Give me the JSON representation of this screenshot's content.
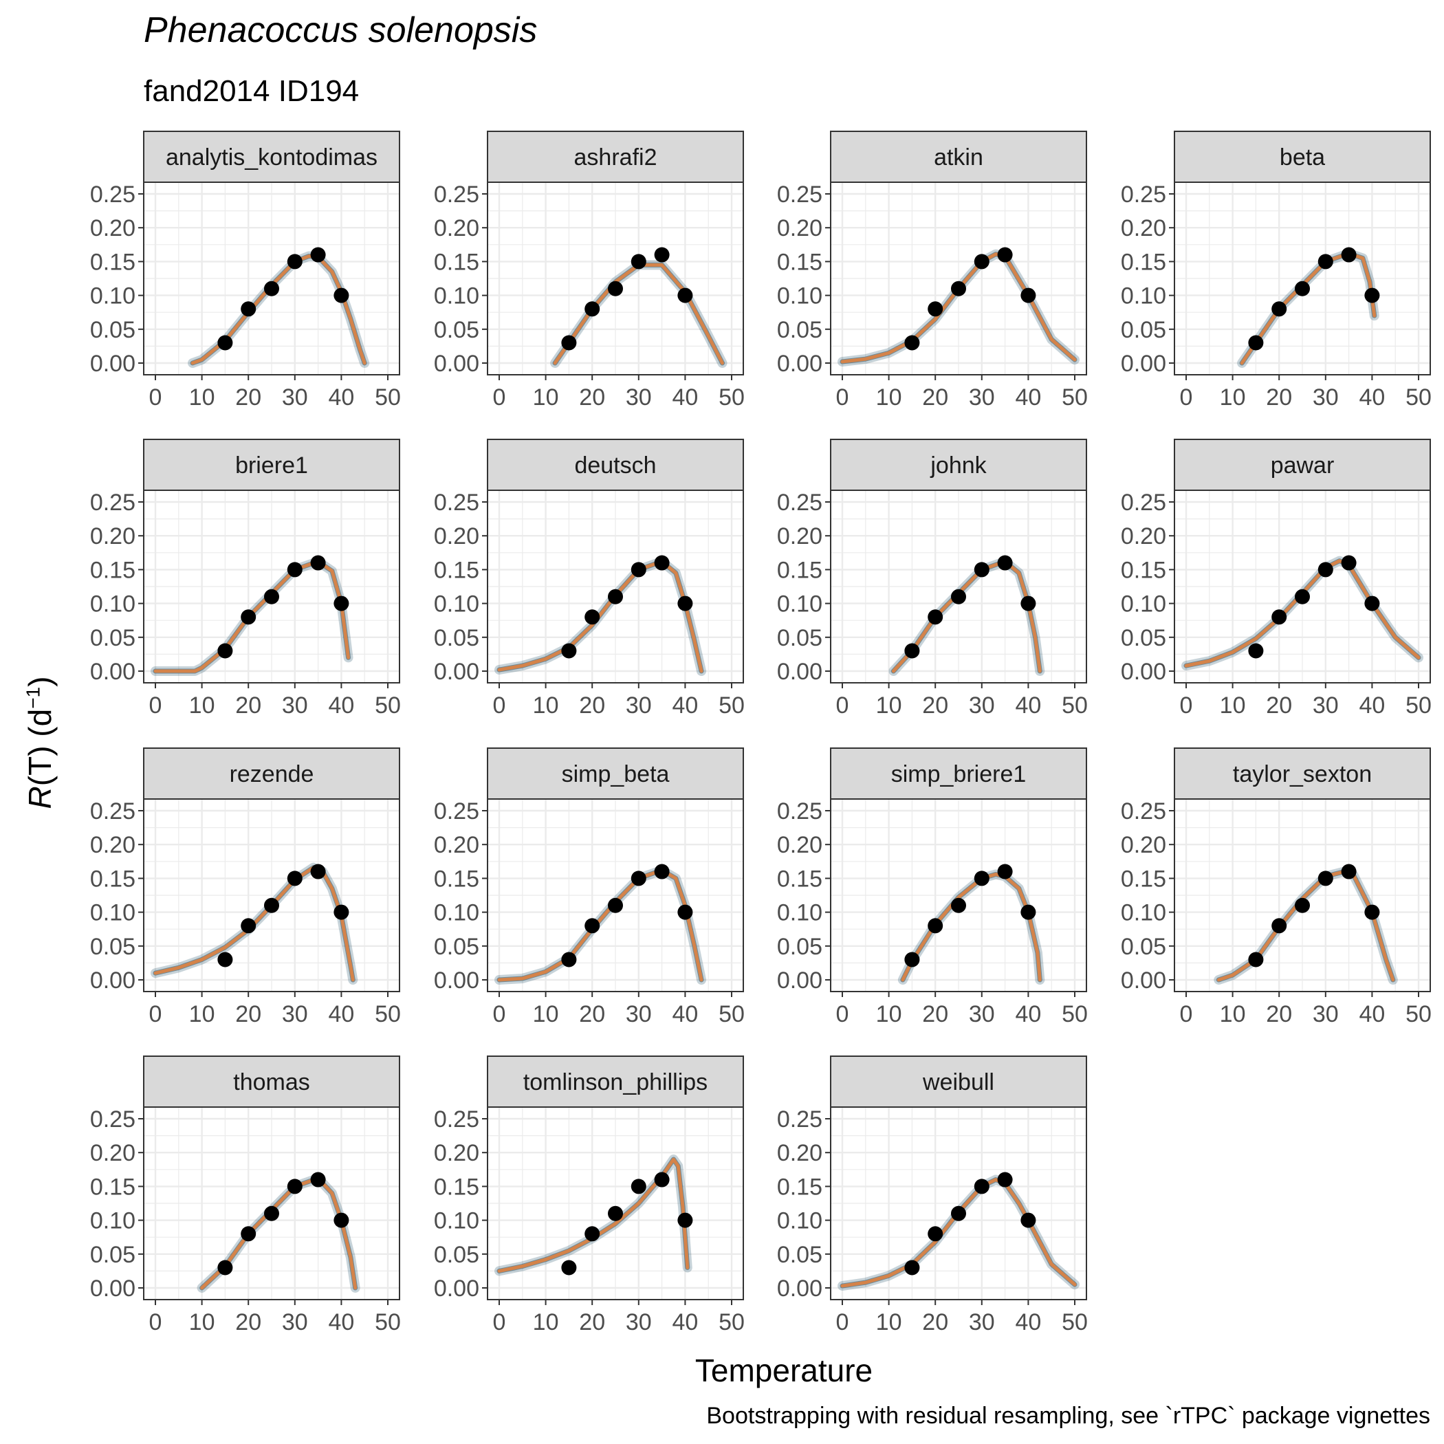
{
  "title": "Phenacoccus solenopsis",
  "subtitle": "fand2014 ID194",
  "x_axis_label": "Temperature",
  "y_axis_label": {
    "main": "R",
    "paren": "(T) (d",
    "sup": "−1",
    "close": ")"
  },
  "caption": "Bootstrapping with residual resampling, see `rTPC` package vignettes",
  "colors": {
    "fit": "#d4834a",
    "bootstrap": "#1f4e66",
    "point": "#000000",
    "strip_bg": "#d9d9d9",
    "grid": "#ebebeb",
    "panel_border": "#333333"
  },
  "chart_data": {
    "type": "line",
    "facets": [
      "analytis_kontodimas",
      "ashrafi2",
      "atkin",
      "beta",
      "briere1",
      "deutsch",
      "johnk",
      "pawar",
      "rezende",
      "simp_beta",
      "simp_briere1",
      "taylor_sexton",
      "thomas",
      "tomlinson_phillips",
      "weibull"
    ],
    "xlim": [
      0,
      50
    ],
    "ylim": [
      0,
      0.25
    ],
    "x_ticks": [
      "0",
      "10",
      "20",
      "30",
      "40",
      "50"
    ],
    "y_ticks": [
      "0.00",
      "0.05",
      "0.10",
      "0.15",
      "0.20",
      "0.25"
    ],
    "points": {
      "x": [
        15,
        20,
        25,
        30,
        35,
        40
      ],
      "y": [
        0.03,
        0.08,
        0.11,
        0.15,
        0.16,
        0.1
      ]
    },
    "fits": {
      "analytis_kontodimas": {
        "x": [
          8,
          10,
          15,
          20,
          25,
          30,
          33,
          35,
          38,
          40,
          42,
          44,
          45
        ],
        "y": [
          0,
          0.005,
          0.033,
          0.075,
          0.115,
          0.15,
          0.158,
          0.157,
          0.135,
          0.105,
          0.065,
          0.02,
          0
        ]
      },
      "ashrafi2": {
        "x": [
          12,
          15,
          20,
          25,
          30,
          35,
          40,
          45,
          48
        ],
        "y": [
          0,
          0.03,
          0.08,
          0.12,
          0.145,
          0.145,
          0.105,
          0.04,
          0
        ]
      },
      "atkin": {
        "x": [
          0,
          5,
          10,
          15,
          20,
          25,
          30,
          33,
          35,
          40,
          45,
          50
        ],
        "y": [
          0.002,
          0.006,
          0.015,
          0.033,
          0.065,
          0.11,
          0.15,
          0.161,
          0.158,
          0.1,
          0.035,
          0.005
        ]
      },
      "beta": {
        "x": [
          12,
          15,
          20,
          25,
          30,
          35,
          38,
          39.5,
          40.5
        ],
        "y": [
          0,
          0.03,
          0.08,
          0.115,
          0.15,
          0.162,
          0.155,
          0.12,
          0.07
        ]
      },
      "briere1": {
        "x": [
          0,
          8.5,
          10,
          15,
          20,
          25,
          30,
          35,
          38,
          40,
          41.5
        ],
        "y": [
          0,
          0,
          0.005,
          0.033,
          0.08,
          0.115,
          0.15,
          0.162,
          0.148,
          0.1,
          0.02
        ]
      },
      "deutsch": {
        "x": [
          0,
          5,
          10,
          15,
          20,
          25,
          30,
          35,
          38,
          40,
          42,
          43.5
        ],
        "y": [
          0.002,
          0.008,
          0.018,
          0.035,
          0.068,
          0.112,
          0.15,
          0.162,
          0.145,
          0.1,
          0.045,
          0
        ]
      },
      "johnk": {
        "x": [
          11,
          15,
          20,
          25,
          30,
          35,
          38,
          40,
          41.5,
          42.5
        ],
        "y": [
          0,
          0.03,
          0.08,
          0.115,
          0.15,
          0.162,
          0.145,
          0.1,
          0.05,
          0
        ]
      },
      "pawar": {
        "x": [
          0,
          5,
          10,
          15,
          20,
          25,
          30,
          33,
          35,
          40,
          45,
          50
        ],
        "y": [
          0.008,
          0.015,
          0.028,
          0.048,
          0.078,
          0.115,
          0.153,
          0.163,
          0.157,
          0.1,
          0.05,
          0.02
        ]
      },
      "rezende": {
        "x": [
          0,
          5,
          10,
          15,
          20,
          25,
          30,
          34,
          36,
          38,
          40,
          42,
          42.5
        ],
        "y": [
          0.01,
          0.018,
          0.03,
          0.048,
          0.074,
          0.11,
          0.148,
          0.166,
          0.16,
          0.135,
          0.095,
          0.02,
          0
        ]
      },
      "simp_beta": {
        "x": [
          0,
          5,
          10,
          15,
          20,
          25,
          30,
          35,
          38,
          40,
          42,
          43.5
        ],
        "y": [
          0,
          0.002,
          0.012,
          0.032,
          0.075,
          0.115,
          0.15,
          0.162,
          0.15,
          0.11,
          0.05,
          0
        ]
      },
      "simp_briere1": {
        "x": [
          13,
          15,
          20,
          25,
          30,
          33,
          35,
          38,
          40,
          42,
          42.5
        ],
        "y": [
          0,
          0.028,
          0.082,
          0.122,
          0.15,
          0.156,
          0.153,
          0.135,
          0.1,
          0.04,
          0
        ]
      },
      "taylor_sexton": {
        "x": [
          7,
          10,
          15,
          20,
          25,
          30,
          34,
          36,
          40,
          43,
          44.5
        ],
        "y": [
          0,
          0.007,
          0.03,
          0.078,
          0.12,
          0.153,
          0.16,
          0.155,
          0.1,
          0.03,
          0
        ]
      },
      "thomas": {
        "x": [
          10,
          15,
          20,
          25,
          30,
          35,
          38,
          40,
          42,
          43
        ],
        "y": [
          0,
          0.032,
          0.08,
          0.115,
          0.15,
          0.162,
          0.14,
          0.1,
          0.045,
          0
        ]
      },
      "tomlinson_phillips": {
        "x": [
          0,
          5,
          10,
          15,
          20,
          25,
          30,
          35,
          37.5,
          38.5,
          39.5,
          40.5
        ],
        "y": [
          0.025,
          0.032,
          0.042,
          0.055,
          0.073,
          0.095,
          0.125,
          0.165,
          0.19,
          0.18,
          0.12,
          0.03
        ]
      },
      "weibull": {
        "x": [
          0,
          5,
          10,
          15,
          20,
          25,
          30,
          33,
          35,
          38,
          40,
          45,
          50
        ],
        "y": [
          0.003,
          0.008,
          0.018,
          0.035,
          0.068,
          0.112,
          0.15,
          0.16,
          0.155,
          0.125,
          0.1,
          0.035,
          0.005
        ]
      }
    }
  }
}
